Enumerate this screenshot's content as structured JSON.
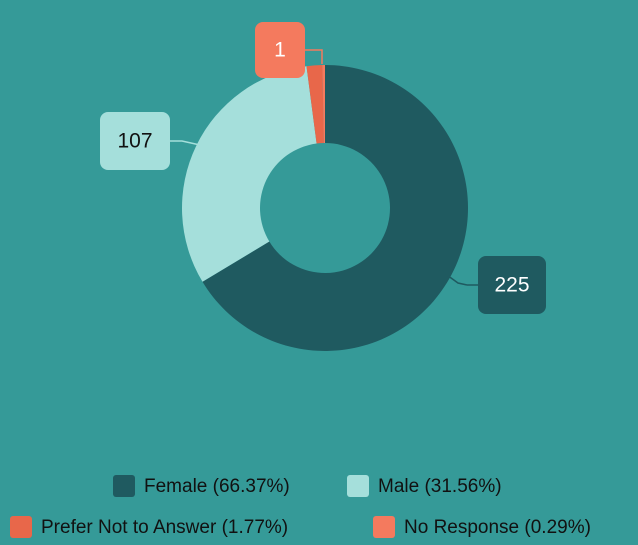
{
  "chart_data": {
    "type": "donut",
    "categories": [
      "Female (66.37%)",
      "Male (31.56%)",
      "Prefer Not to Answer (1.77%)",
      "No Response (0.29%)"
    ],
    "values": [
      225,
      107,
      6,
      1
    ],
    "colors": [
      "#1f5a60",
      "#a5dfdb",
      "#e8674a",
      "#f47a5e"
    ]
  }
}
